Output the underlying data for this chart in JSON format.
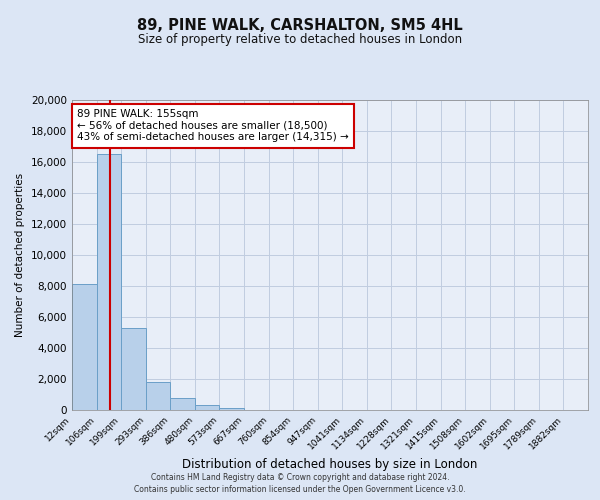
{
  "title": "89, PINE WALK, CARSHALTON, SM5 4HL",
  "subtitle": "Size of property relative to detached houses in London",
  "xlabel": "Distribution of detached houses by size in London",
  "ylabel": "Number of detached properties",
  "bar_labels": [
    "12sqm",
    "106sqm",
    "199sqm",
    "293sqm",
    "386sqm",
    "480sqm",
    "573sqm",
    "667sqm",
    "760sqm",
    "854sqm",
    "947sqm",
    "1041sqm",
    "1134sqm",
    "1228sqm",
    "1321sqm",
    "1415sqm",
    "1508sqm",
    "1602sqm",
    "1695sqm",
    "1789sqm",
    "1882sqm"
  ],
  "bar_values": [
    8100,
    16500,
    5300,
    1800,
    750,
    300,
    150,
    0,
    0,
    0,
    0,
    0,
    0,
    0,
    0,
    0,
    0,
    0,
    0,
    0,
    0
  ],
  "bar_color": "#b8d0ea",
  "bar_edge_color": "#6a9fc8",
  "property_line_color": "#cc0000",
  "annotation_line1": "89 PINE WALK: 155sqm",
  "annotation_line2": "← 56% of detached houses are smaller (18,500)",
  "annotation_line3": "43% of semi-detached houses are larger (14,315) →",
  "annotation_box_color": "#ffffff",
  "annotation_box_edge_color": "#cc0000",
  "ylim": [
    0,
    20000
  ],
  "yticks": [
    0,
    2000,
    4000,
    6000,
    8000,
    10000,
    12000,
    14000,
    16000,
    18000,
    20000
  ],
  "bg_color": "#dce6f5",
  "plot_bg_color": "#e8eef8",
  "grid_color": "#c0cce0",
  "footer1": "Contains HM Land Registry data © Crown copyright and database right 2024.",
  "footer2": "Contains public sector information licensed under the Open Government Licence v3.0."
}
